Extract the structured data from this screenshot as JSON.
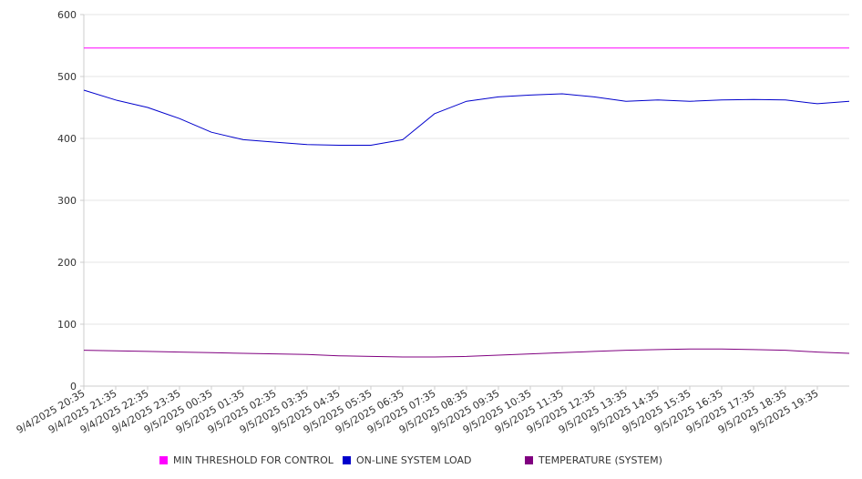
{
  "chart_data": {
    "type": "line",
    "title": "",
    "xlabel": "",
    "ylabel": "",
    "ylim": [
      0,
      600
    ],
    "yticks": [
      "0",
      "100",
      "200",
      "300",
      "400",
      "500",
      "600"
    ],
    "x_tick_labels": [
      "9/4/2025 20:35",
      "9/4/2025 21:35",
      "9/4/2025 22:35",
      "9/4/2025 23:35",
      "9/5/2025 00:35",
      "9/5/2025 01:35",
      "9/5/2025 02:35",
      "9/5/2025 03:35",
      "9/5/2025 04:35",
      "9/5/2025 05:35",
      "9/5/2025 06:35",
      "9/5/2025 07:35",
      "9/5/2025 08:35",
      "9/5/2025 09:35",
      "9/5/2025 10:35",
      "9/5/2025 11:35",
      "9/5/2025 12:35",
      "9/5/2025 13:35",
      "9/5/2025 14:35",
      "9/5/2025 15:35",
      "9/5/2025 16:35",
      "9/5/2025 17:35",
      "9/5/2025 18:35",
      "9/5/2025 19:35"
    ],
    "x": [
      "20:35",
      "21:35",
      "22:35",
      "23:35",
      "00:35",
      "01:35",
      "02:35",
      "03:35",
      "04:35",
      "05:35",
      "06:35",
      "07:35",
      "08:35",
      "09:35",
      "10:35",
      "11:35",
      "12:35",
      "13:35",
      "14:35",
      "15:35",
      "16:35",
      "17:35",
      "18:35",
      "19:35",
      "20:35"
    ],
    "grid": true,
    "legend_position": "bottom",
    "series": [
      {
        "name": "MIN THRESHOLD FOR CONTROL",
        "color": "#ff00ff",
        "values": [
          546,
          546,
          546,
          546,
          546,
          546,
          546,
          546,
          546,
          546,
          546,
          546,
          546,
          546,
          546,
          546,
          546,
          546,
          546,
          546,
          546,
          546,
          546,
          546,
          546
        ]
      },
      {
        "name": "ON-LINE SYSTEM LOAD",
        "color": "#0000cc",
        "values": [
          478,
          462,
          450,
          432,
          410,
          398,
          394,
          390,
          389,
          389,
          398,
          440,
          460,
          467,
          470,
          472,
          467,
          460,
          462,
          460,
          462,
          463,
          462,
          456,
          460
        ]
      },
      {
        "name": "TEMPERATURE (SYSTEM)",
        "color": "#800080",
        "values": [
          58,
          57,
          56,
          55,
          54,
          53,
          52,
          51,
          49,
          48,
          47,
          47,
          48,
          50,
          52,
          54,
          56,
          58,
          59,
          60,
          60,
          59,
          58,
          55,
          53
        ]
      }
    ]
  }
}
